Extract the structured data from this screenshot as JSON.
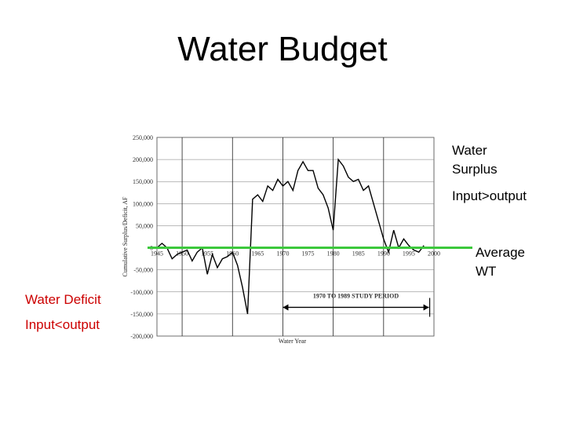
{
  "slide": {
    "title": "Water Budget",
    "surplus_label_1": "Water",
    "surplus_label_2": "Surplus",
    "surplus_label_3": "Input>output",
    "average_label_1": "Average",
    "average_label_2": "WT",
    "deficit_label_1": "Water Deficit",
    "deficit_label_2": "Input<output"
  },
  "colors": {
    "line": "#000000",
    "average_line": "#3cc83c",
    "deficit_text": "#cc0000",
    "grid": "#000000"
  },
  "chart_data": {
    "type": "line",
    "title": "",
    "xlabel": "Water Year",
    "ylabel": "Cumulative Surplus/Deficit, AF",
    "xlim": [
      1945,
      2000
    ],
    "ylim": [
      -200000,
      250000
    ],
    "y_ticks": [
      250000,
      200000,
      150000,
      100000,
      50000,
      0,
      -50000,
      -100000,
      -150000,
      -200000
    ],
    "y_tick_labels": [
      "250,000",
      "200,000",
      "150,000",
      "100,000",
      "50,000",
      "0",
      "-50,000",
      "-100,000",
      "-150,000",
      "-200,000"
    ],
    "x_ticks": [
      1945,
      1950,
      1955,
      1960,
      1965,
      1970,
      1975,
      1980,
      1985,
      1990,
      1995,
      2000
    ],
    "x_tick_labels": [
      "1945",
      "1950",
      "1955",
      "1960",
      "1965",
      "1970",
      "1975",
      "1980",
      "1985",
      "1990",
      "1995",
      "2000"
    ],
    "grid": true,
    "series": [
      {
        "name": "",
        "x": [
          1945,
          1946,
          1947,
          1948,
          1949,
          1950,
          1951,
          1952,
          1953,
          1954,
          1955,
          1956,
          1957,
          1958,
          1959,
          1960,
          1961,
          1962,
          1963,
          1964,
          1965,
          1966,
          1967,
          1968,
          1969,
          1970,
          1971,
          1972,
          1973,
          1974,
          1975,
          1976,
          1977,
          1978,
          1979,
          1980,
          1981,
          1982,
          1983,
          1984,
          1985,
          1986,
          1987,
          1988,
          1989,
          1990,
          1991,
          1992,
          1993,
          1994,
          1995,
          1996,
          1997,
          1998
        ],
        "y": [
          0,
          10000,
          0,
          -25000,
          -15000,
          -10000,
          -5000,
          -30000,
          -10000,
          0,
          -60000,
          -15000,
          -45000,
          -25000,
          -20000,
          -10000,
          -40000,
          -90000,
          -150000,
          110000,
          120000,
          105000,
          140000,
          130000,
          155000,
          140000,
          150000,
          130000,
          175000,
          195000,
          175000,
          175000,
          135000,
          120000,
          90000,
          40000,
          200000,
          185000,
          160000,
          150000,
          155000,
          130000,
          140000,
          100000,
          60000,
          20000,
          -10000,
          40000,
          0,
          20000,
          5000,
          -5000,
          -10000,
          5000
        ]
      }
    ],
    "average_line_y": 0,
    "annotation": {
      "text": "1970 TO 1989 STUDY PERIOD",
      "x_start": 1970,
      "x_end": 1999
    }
  }
}
